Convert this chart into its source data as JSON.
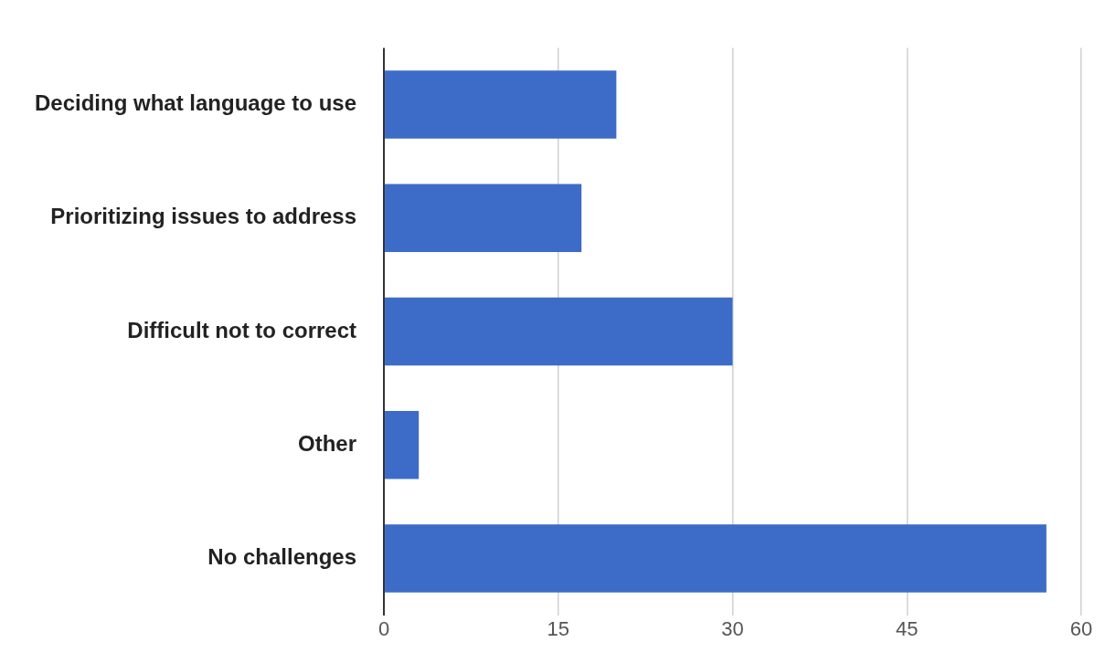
{
  "chart_data": {
    "type": "bar",
    "orientation": "horizontal",
    "categories": [
      "Deciding what language to use",
      "Prioritizing issues to address",
      "Difficult not to correct",
      "Other",
      "No challenges"
    ],
    "values": [
      20,
      17,
      30,
      3,
      57
    ],
    "color": "#3d6cc8",
    "xlim": [
      0,
      60
    ],
    "xticks": [
      0,
      15,
      30,
      45,
      60
    ],
    "grid": "x",
    "legend": false
  }
}
